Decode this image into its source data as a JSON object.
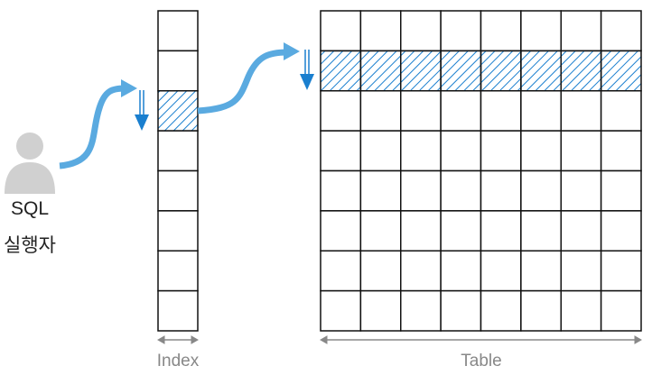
{
  "actor": {
    "line1": "SQL",
    "line2": "실행자"
  },
  "index": {
    "label": "Index",
    "rows": 8,
    "highlighted_row": 2
  },
  "table": {
    "label": "Table",
    "rows": 8,
    "columns": 8,
    "highlighted_row": 1
  },
  "colors": {
    "flow_arrow": "#5aaae0",
    "scan_arrow": "#1a7fcf",
    "hatch": "#1a7fcf",
    "grid": "#111111",
    "dimension": "#888888",
    "person": "#d0d0d0"
  }
}
